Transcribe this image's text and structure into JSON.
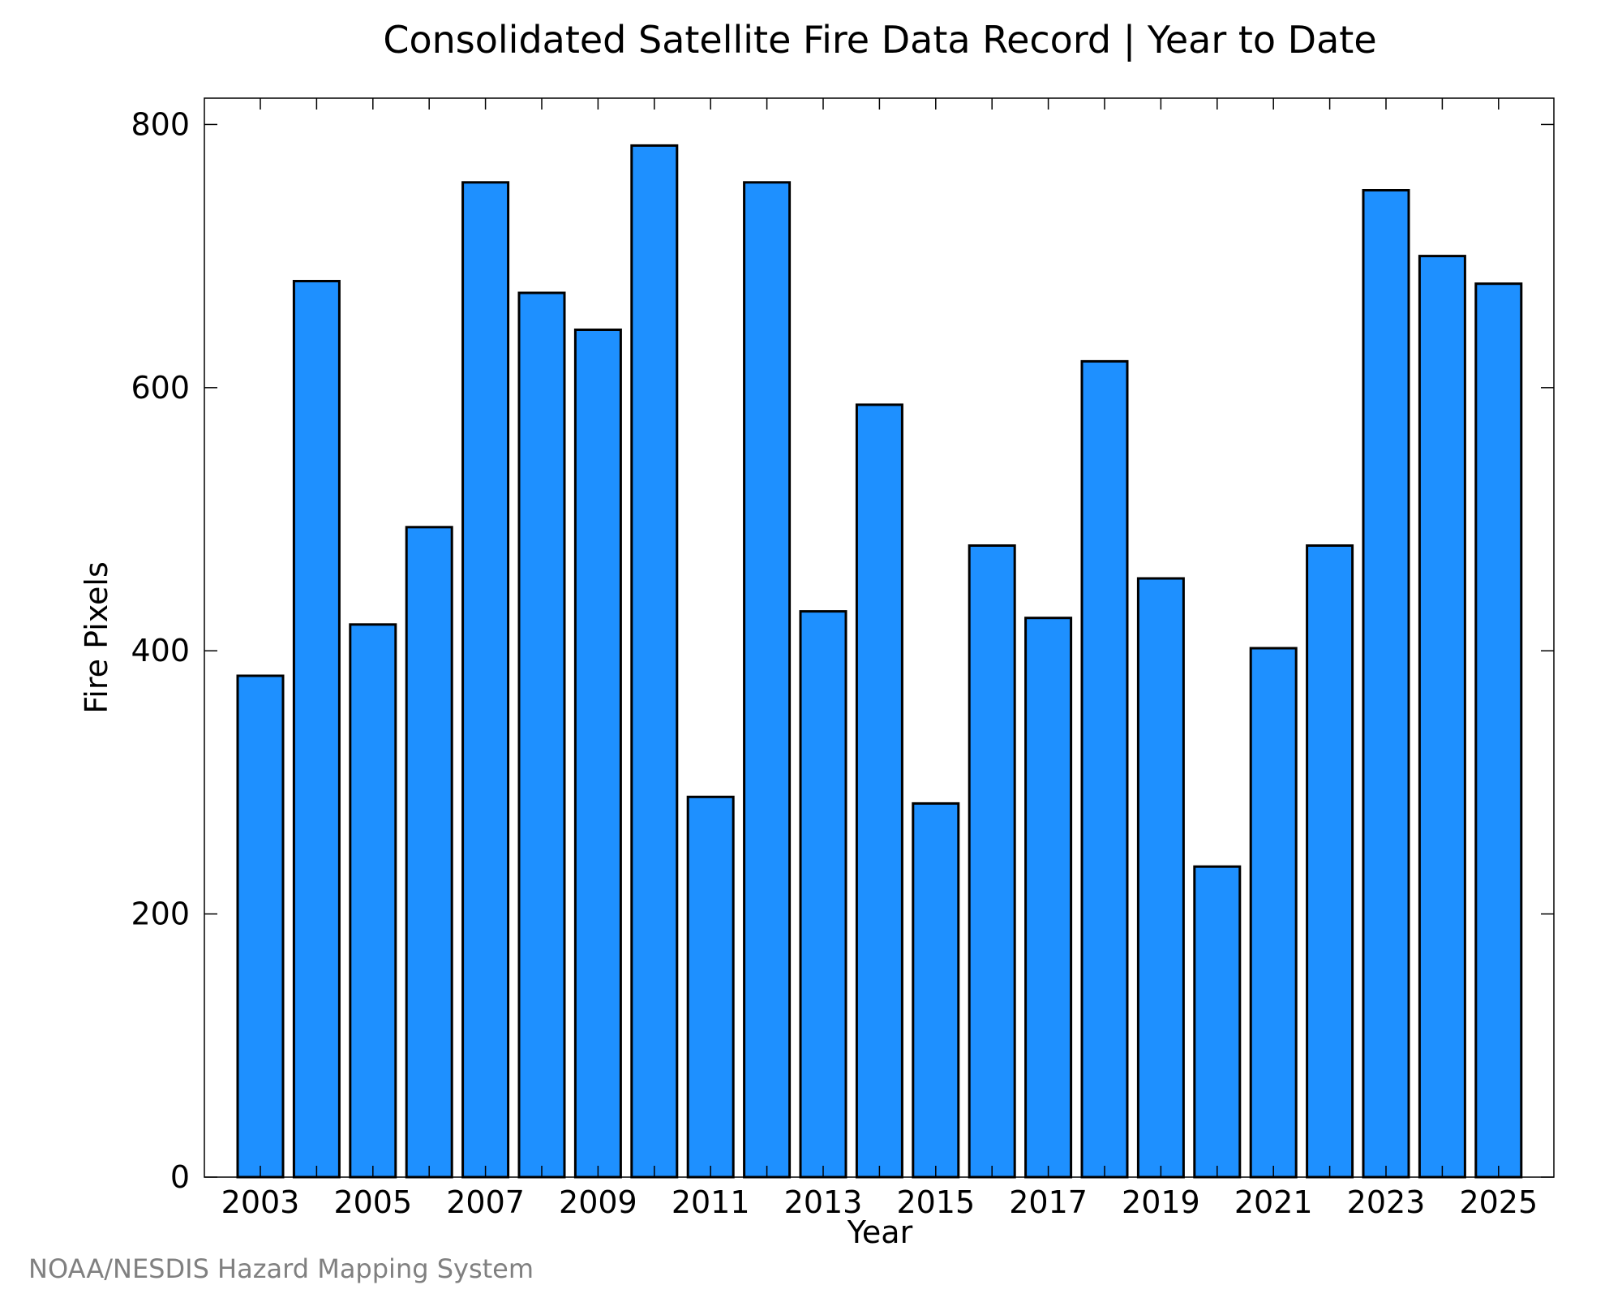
{
  "chart_data": {
    "type": "bar",
    "title": "Consolidated Satellite Fire Data Record | Year to Date",
    "xlabel": "Year",
    "ylabel": "Fire Pixels",
    "credit": "NOAA/NESDIS Hazard Mapping System",
    "bar_color": "#1e90ff",
    "ylim": [
      0,
      820
    ],
    "yticks": [
      0,
      200,
      400,
      600,
      800
    ],
    "xticks": [
      "2003",
      "2005",
      "2007",
      "2009",
      "2011",
      "2013",
      "2015",
      "2017",
      "2019",
      "2021",
      "2023",
      "2025"
    ],
    "grid": false,
    "categories": [
      2003,
      2004,
      2005,
      2006,
      2007,
      2008,
      2009,
      2010,
      2011,
      2012,
      2013,
      2014,
      2015,
      2016,
      2017,
      2018,
      2019,
      2020,
      2021,
      2022,
      2023,
      2024,
      2025
    ],
    "values": [
      381,
      681,
      420,
      494,
      756,
      672,
      644,
      784,
      289,
      756,
      430,
      587,
      284,
      480,
      425,
      620,
      455,
      236,
      402,
      480,
      750,
      700,
      679
    ]
  }
}
